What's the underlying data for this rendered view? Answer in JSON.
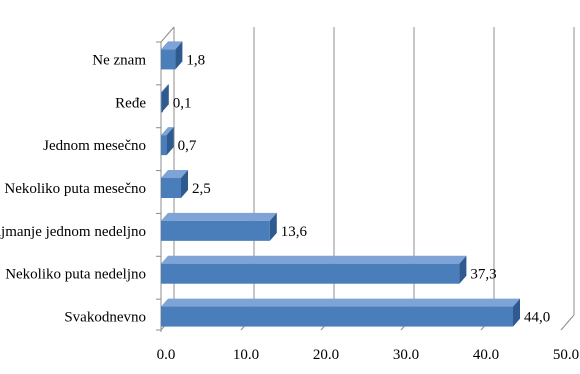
{
  "chart_data": {
    "type": "bar",
    "orientation": "horizontal",
    "style": "3d",
    "categories": [
      "Ne znam",
      "Ređe",
      "Jednom mesečno",
      "Nekoliko puta mesečno",
      "Najmanje jednom nedeljno",
      "Nekoliko puta nedeljno",
      "Svakodnevno"
    ],
    "values": [
      1.8,
      0.1,
      0.7,
      2.5,
      13.6,
      37.3,
      44.0
    ],
    "data_labels": [
      "1,8",
      "0,1",
      "0,7",
      "2,5",
      "13,6",
      "37,3",
      "44,0"
    ],
    "x_ticks": [
      "0.0",
      "10.0",
      "20.0",
      "30.0",
      "40.0",
      "50.0"
    ],
    "xlim": [
      0,
      50
    ],
    "title": "",
    "xlabel": "",
    "ylabel": "",
    "grid": true,
    "legend": "none",
    "colors": {
      "bar_front": "#4a7ebb",
      "bar_top": "#7ea3d6",
      "bar_side": "#2f5a8f",
      "grid": "#8c8c8c"
    }
  }
}
